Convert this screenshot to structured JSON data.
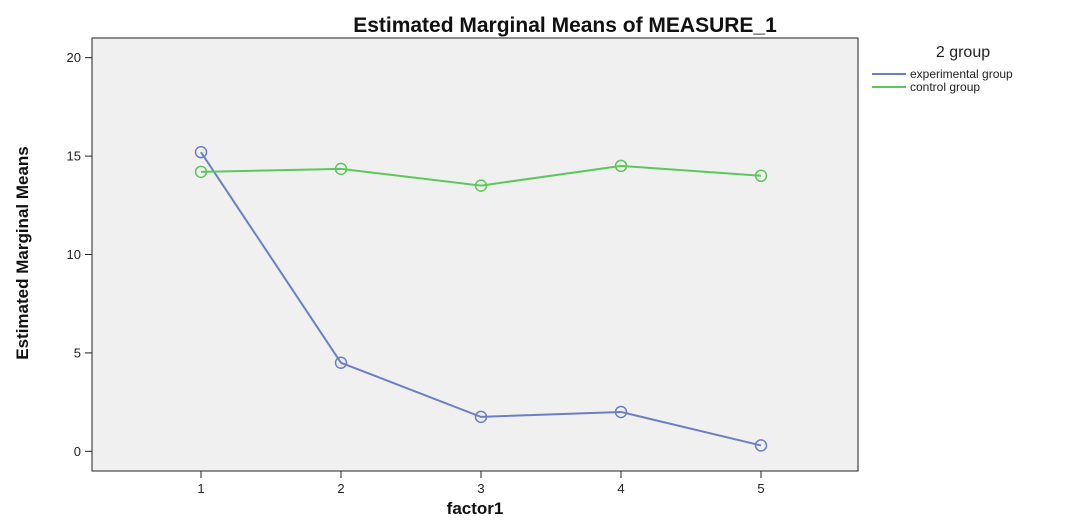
{
  "chart_data": {
    "type": "line",
    "title": "Estimated Marginal Means of MEASURE_1",
    "xlabel": "factor1",
    "ylabel": "Estimated Marginal Means",
    "categories": [
      "1",
      "2",
      "3",
      "4",
      "5"
    ],
    "ylim": [
      -1,
      21
    ],
    "yticks": [
      0,
      5,
      10,
      15,
      20
    ],
    "legend_title": "2 group",
    "legend_position": "top-right",
    "plot_background": "#f0f0f0",
    "series": [
      {
        "name": "experimental group",
        "color": "#6b7fc4",
        "values": [
          15.2,
          4.5,
          1.75,
          2.0,
          0.3
        ]
      },
      {
        "name": "control group",
        "color": "#5cc85c",
        "values": [
          14.2,
          14.35,
          13.5,
          14.5,
          14.0
        ]
      }
    ]
  }
}
